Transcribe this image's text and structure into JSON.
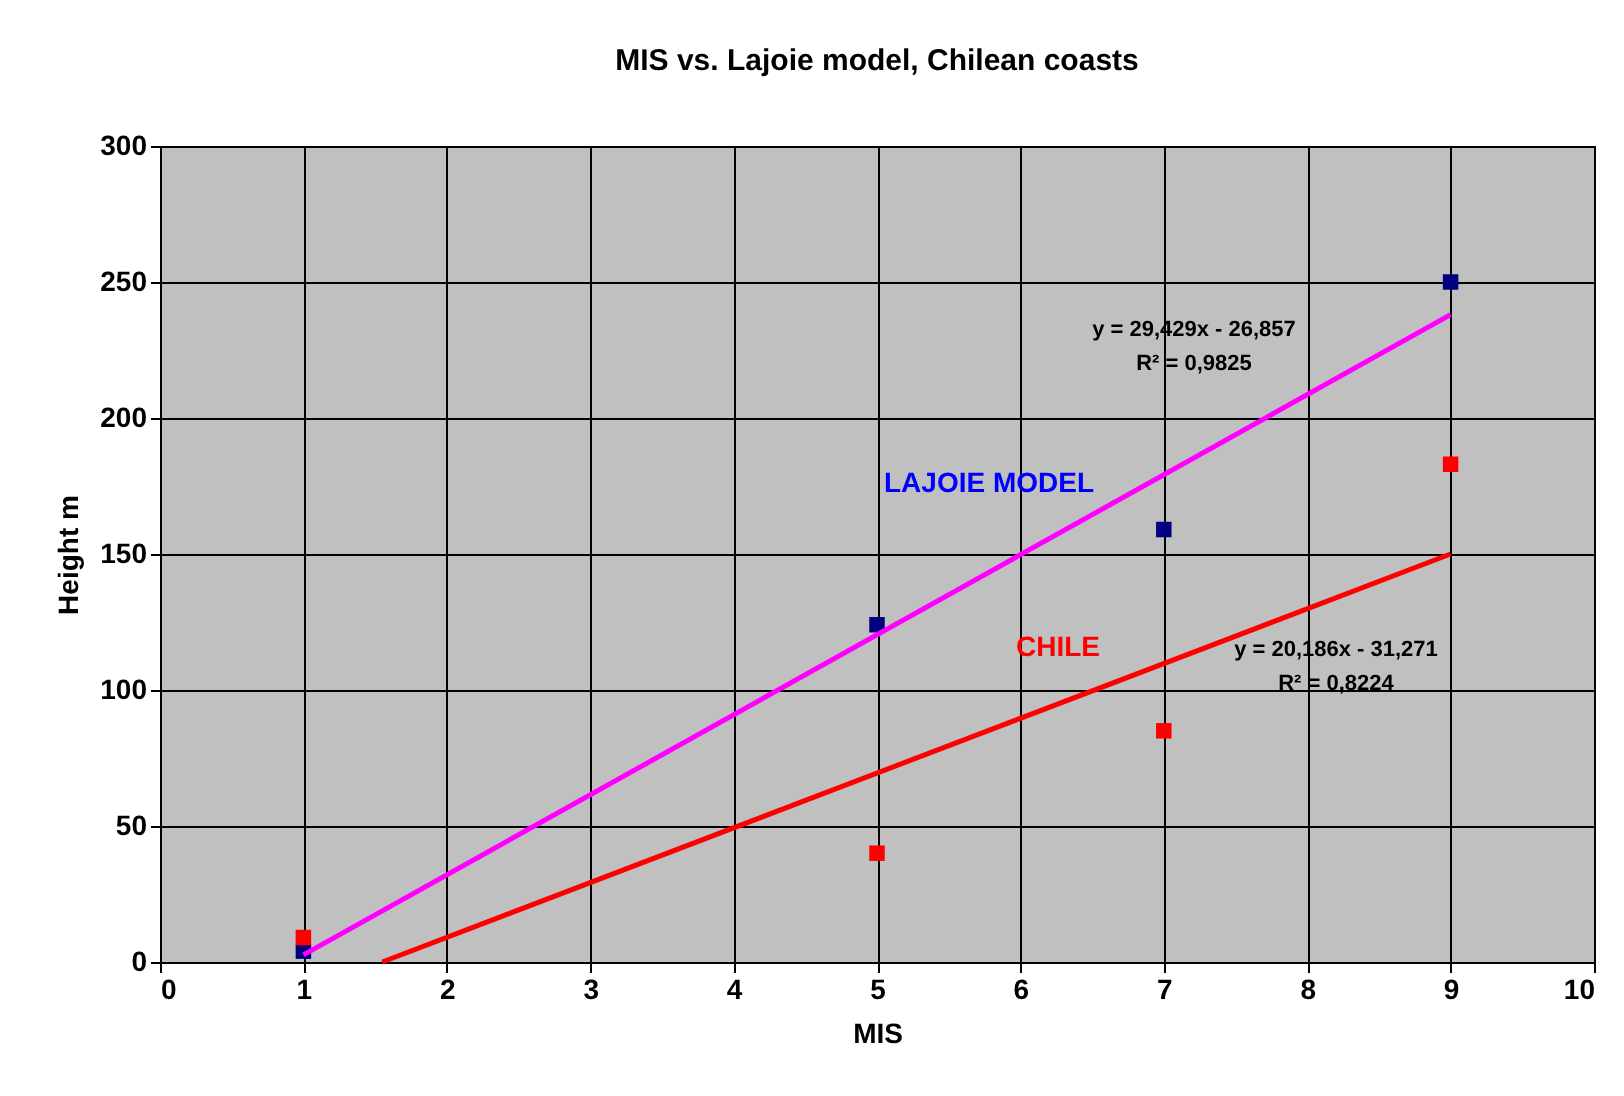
{
  "chart_data": {
    "type": "scatter",
    "title": "MIS vs. Lajoie model, Chilean  coasts",
    "xlabel": "MIS",
    "ylabel": "Height m",
    "xlim": [
      0,
      10
    ],
    "xticks": [
      0,
      1,
      2,
      3,
      4,
      5,
      6,
      7,
      8,
      9,
      10
    ],
    "ylim": [
      0,
      300
    ],
    "yticks": [
      0,
      50,
      100,
      150,
      200,
      250,
      300
    ],
    "grid": true,
    "marker": "square",
    "series": [
      {
        "name": "LAJOIE MODEL",
        "color": "#000080",
        "x": [
          1,
          5,
          7,
          9
        ],
        "values": [
          4,
          124,
          159,
          250
        ]
      },
      {
        "name": "CHILE",
        "color": "#ff0000",
        "x": [
          1,
          5,
          7,
          9
        ],
        "values": [
          9,
          40,
          85,
          183
        ]
      },
      {
        "type": "line",
        "marker": "none",
        "color": "#ff00ff",
        "x": [
          1,
          9
        ],
        "values": [
          2.6,
          238
        ]
      },
      {
        "type": "line",
        "marker": "none",
        "color": "#ff0000",
        "x": [
          1.55,
          9
        ],
        "values": [
          0,
          150
        ]
      }
    ],
    "annotations": [
      "y = 29,429x - 26,857",
      "R² = 0,9825",
      "y = 20,186x - 31,271",
      "R² = 0,8224"
    ]
  }
}
